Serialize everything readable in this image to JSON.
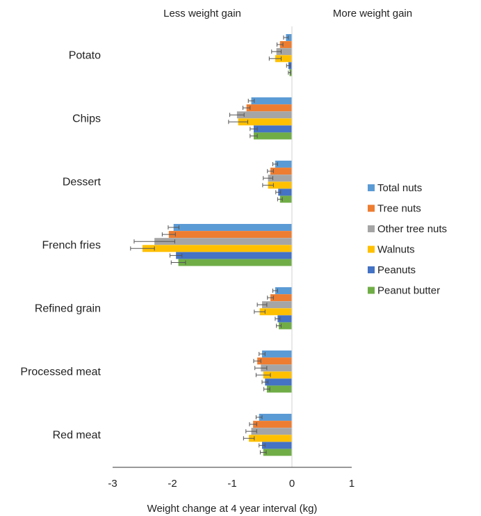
{
  "chart_data": {
    "type": "bar",
    "orientation": "horizontal",
    "title": "",
    "xlabel": "Weight change at 4 year interval (kg)",
    "ylabel": "",
    "xlim": [
      -3,
      1
    ],
    "xticks": [
      "-3",
      "-2",
      "-1",
      "0",
      "1"
    ],
    "grid": false,
    "legend_position": "right",
    "headers": {
      "left": "Less weight gain",
      "right": "More weight gain"
    },
    "categories": [
      "Potato",
      "Chips",
      "Dessert",
      "French fries",
      "Refined grain",
      "Processed meat",
      "Red meat"
    ],
    "series": [
      {
        "name": "Total nuts",
        "color": "#5b9bd5",
        "values": [
          -0.1,
          -0.68,
          -0.28,
          -1.98,
          -0.28,
          -0.5,
          -0.55
        ],
        "errors": [
          0.04,
          0.05,
          0.04,
          0.09,
          0.04,
          0.05,
          0.05
        ]
      },
      {
        "name": "Tree nuts",
        "color": "#ed7d31",
        "values": [
          -0.2,
          -0.76,
          -0.36,
          -2.06,
          -0.36,
          -0.58,
          -0.65
        ],
        "errors": [
          0.05,
          0.06,
          0.05,
          0.11,
          0.05,
          0.06,
          0.06
        ]
      },
      {
        "name": "Other tree nuts",
        "color": "#a5a5a5",
        "values": [
          -0.26,
          -0.92,
          -0.4,
          -2.3,
          -0.5,
          -0.52,
          -0.68
        ],
        "errors": [
          0.08,
          0.12,
          0.08,
          0.34,
          0.08,
          0.1,
          0.09
        ]
      },
      {
        "name": "Walnuts",
        "color": "#ffc000",
        "values": [
          -0.28,
          -0.9,
          -0.4,
          -2.5,
          -0.54,
          -0.48,
          -0.72
        ],
        "errors": [
          0.1,
          0.16,
          0.09,
          0.2,
          0.09,
          0.12,
          0.09
        ]
      },
      {
        "name": "Peanuts",
        "color": "#4472c4",
        "values": [
          -0.06,
          -0.64,
          -0.23,
          -1.94,
          -0.24,
          -0.45,
          -0.5
        ],
        "errors": [
          0.03,
          0.06,
          0.04,
          0.1,
          0.04,
          0.05,
          0.05
        ]
      },
      {
        "name": "Peanut butter",
        "color": "#70ad47",
        "values": [
          -0.04,
          -0.64,
          -0.2,
          -1.9,
          -0.22,
          -0.42,
          -0.48
        ],
        "errors": [
          0.02,
          0.06,
          0.04,
          0.12,
          0.04,
          0.05,
          0.05
        ]
      }
    ]
  }
}
